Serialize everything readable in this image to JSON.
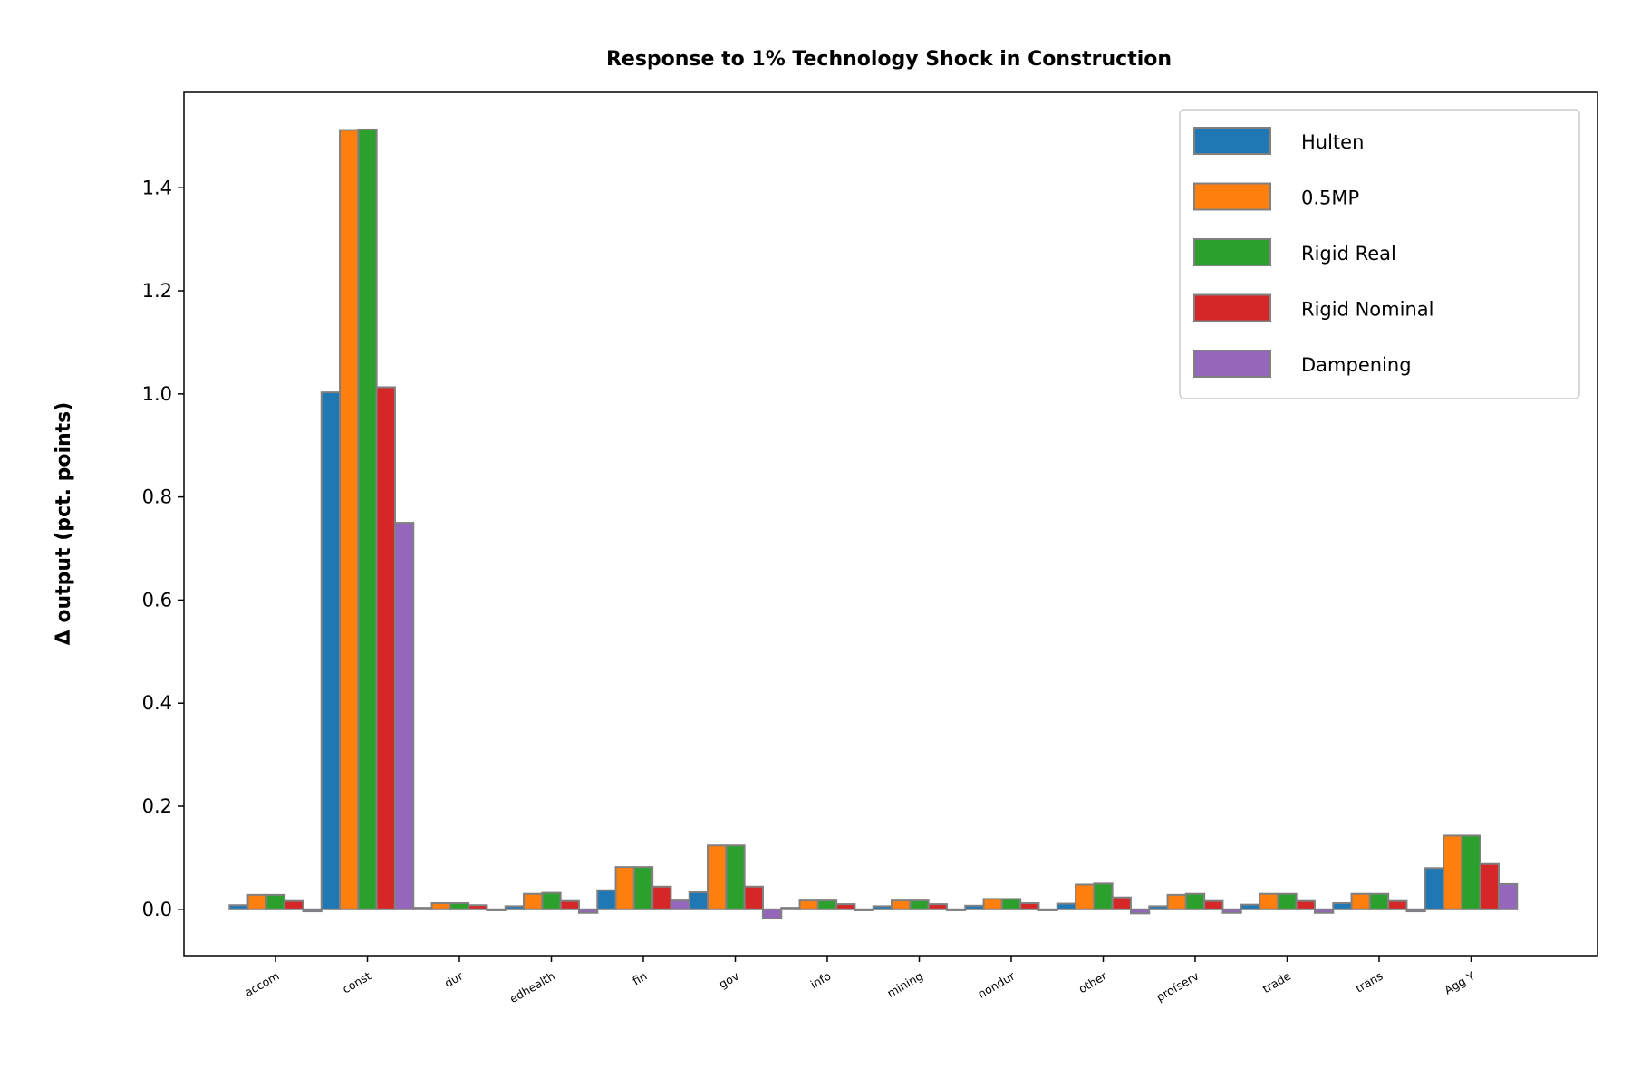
{
  "chart_data": {
    "type": "bar",
    "title": "Response to 1% Technology Shock in Construction",
    "xlabel": "",
    "ylabel": "Δ output (pct. points)",
    "ylim": [
      -0.09,
      1.585
    ],
    "yticks": [
      "0.0",
      "0.2",
      "0.4",
      "0.6",
      "0.8",
      "1.0",
      "1.2",
      "1.4"
    ],
    "ytick_values": [
      0.0,
      0.2,
      0.4,
      0.6,
      0.8,
      1.0,
      1.2,
      1.4
    ],
    "categories": [
      "accom",
      "const",
      "dur",
      "edhealth",
      "fin",
      "gov",
      "info",
      "mining",
      "nondur",
      "other",
      "profserv",
      "trade",
      "trans",
      "Agg Y"
    ],
    "series": [
      {
        "name": "Hulten",
        "color": "#1f77b4",
        "values": [
          0.008,
          1.003,
          0.003,
          0.006,
          0.037,
          0.033,
          0.003,
          0.006,
          0.007,
          0.011,
          0.006,
          0.009,
          0.012,
          0.08
        ]
      },
      {
        "name": "0.5MP",
        "color": "#ff7f0e",
        "values": [
          0.028,
          1.512,
          0.012,
          0.03,
          0.082,
          0.124,
          0.017,
          0.017,
          0.02,
          0.048,
          0.028,
          0.03,
          0.03,
          0.143
        ]
      },
      {
        "name": "Rigid Real",
        "color": "#2ca02c",
        "values": [
          0.028,
          1.513,
          0.012,
          0.032,
          0.082,
          0.124,
          0.017,
          0.017,
          0.02,
          0.05,
          0.03,
          0.03,
          0.03,
          0.143
        ]
      },
      {
        "name": "Rigid Nominal",
        "color": "#d62728",
        "values": [
          0.016,
          1.013,
          0.008,
          0.016,
          0.044,
          0.044,
          0.01,
          0.01,
          0.012,
          0.023,
          0.016,
          0.016,
          0.016,
          0.088
        ]
      },
      {
        "name": "Dampening",
        "color": "#9467bd",
        "values": [
          -0.004,
          0.75,
          -0.002,
          -0.007,
          0.017,
          -0.018,
          -0.002,
          -0.002,
          -0.002,
          -0.008,
          -0.007,
          -0.007,
          -0.004,
          0.049
        ]
      }
    ],
    "bar_edge_color": "#808080",
    "grid": false,
    "legend_position": "top-right"
  }
}
